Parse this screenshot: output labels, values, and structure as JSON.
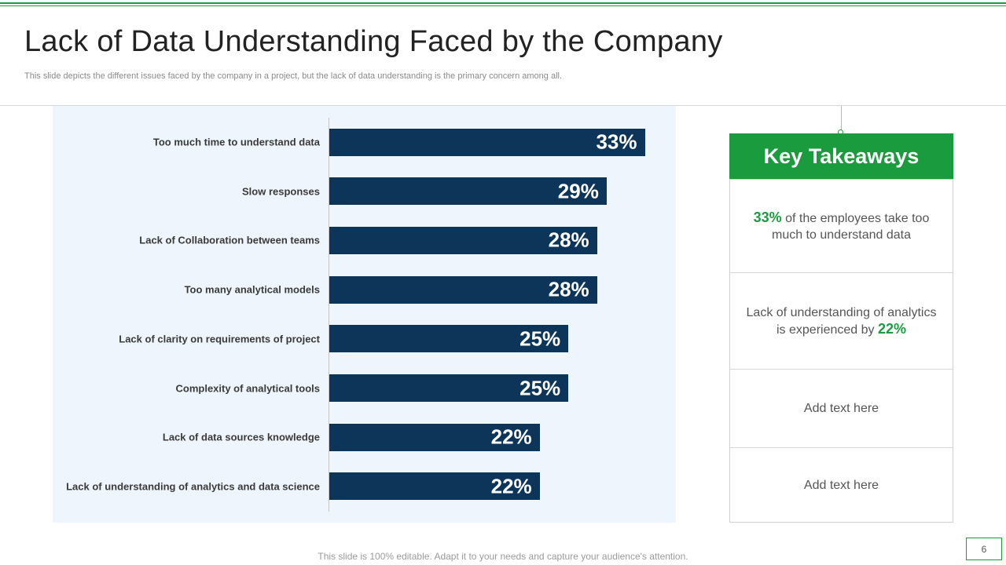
{
  "slide": {
    "title": "Lack of Data Understanding Faced by the Company",
    "subtitle": "This slide depicts the different issues faced by the company in a project, but the lack of data understanding is the primary concern among all.",
    "footer_note": "This slide is 100% editable. Adapt it to your needs and capture your audience's attention.",
    "page_number": "6"
  },
  "colors": {
    "accent_green": "#1a9c3e",
    "bar_navy": "#0d3559",
    "chart_bg": "#eef5fc"
  },
  "chart_data": {
    "type": "bar",
    "orientation": "horizontal",
    "categories": [
      "Too much time to understand data",
      "Slow responses",
      "Lack of Collaboration between teams",
      "Too many analytical models",
      "Lack of clarity on requirements of project",
      "Complexity of analytical tools",
      "Lack of data sources knowledge",
      "Lack of understanding of analytics and data science"
    ],
    "values": [
      33,
      29,
      28,
      28,
      25,
      25,
      22,
      22
    ],
    "value_labels": [
      "33%",
      "29%",
      "28%",
      "28%",
      "25%",
      "25%",
      "22%",
      "22%"
    ],
    "unit": "%",
    "xlim": [
      0,
      36
    ],
    "title": "",
    "xlabel": "",
    "ylabel": "",
    "grid": false,
    "legend": "none"
  },
  "takeaways": {
    "header": "Key Takeaways",
    "item1": {
      "highlight": "33%",
      "text": " of the employees take too much to understand data"
    },
    "item2": {
      "text": "Lack of understanding of analytics is experienced by ",
      "highlight": "22%"
    },
    "item3": "Add text here",
    "item4": "Add text here"
  }
}
